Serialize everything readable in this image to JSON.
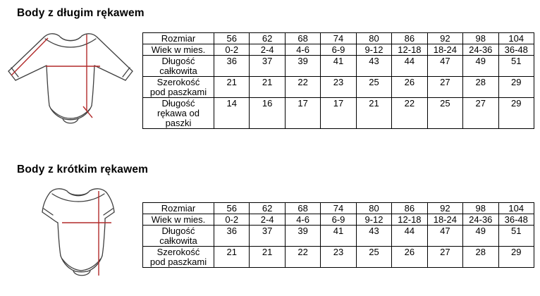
{
  "colors": {
    "background": "#ffffff",
    "text": "#000000",
    "table_border": "#000000",
    "measure_line": "#b22a2a",
    "garment_outline": "#3f3f3f"
  },
  "sections": [
    {
      "title": "Body z długim rękawem",
      "drawing": "long-sleeve-bodysuit-diagram",
      "table": {
        "rows": [
          {
            "label": "Rozmiar",
            "values": [
              "56",
              "62",
              "68",
              "74",
              "80",
              "86",
              "92",
              "98",
              "104"
            ]
          },
          {
            "label": "Wiek w mies.",
            "values": [
              "0-2",
              "2-4",
              "4-6",
              "6-9",
              "9-12",
              "12-18",
              "18-24",
              "24-36",
              "36-48"
            ]
          },
          {
            "label": "Długość\ncałkowita",
            "values": [
              "36",
              "37",
              "39",
              "41",
              "43",
              "44",
              "47",
              "49",
              "51"
            ]
          },
          {
            "label": "Szerokość\npod paszkami",
            "values": [
              "21",
              "21",
              "22",
              "23",
              "25",
              "26",
              "27",
              "28",
              "29"
            ]
          },
          {
            "label": "Długość\nrękawa od\npaszki",
            "values": [
              "14",
              "16",
              "17",
              "17",
              "21",
              "22",
              "25",
              "27",
              "29"
            ]
          }
        ]
      }
    },
    {
      "title": "Body z krótkim rękawem",
      "drawing": "short-sleeve-bodysuit-diagram",
      "table": {
        "rows": [
          {
            "label": "Rozmiar",
            "values": [
              "56",
              "62",
              "68",
              "74",
              "80",
              "86",
              "92",
              "98",
              "104"
            ]
          },
          {
            "label": "Wiek w mies.",
            "values": [
              "0-2",
              "2-4",
              "4-6",
              "6-9",
              "9-12",
              "12-18",
              "18-24",
              "24-36",
              "36-48"
            ]
          },
          {
            "label": "Długość\ncałkowita",
            "values": [
              "36",
              "37",
              "39",
              "41",
              "43",
              "44",
              "47",
              "49",
              "51"
            ]
          },
          {
            "label": "Szerokość\npod paszkami",
            "values": [
              "21",
              "21",
              "22",
              "23",
              "25",
              "26",
              "27",
              "28",
              "29"
            ]
          }
        ]
      }
    }
  ]
}
